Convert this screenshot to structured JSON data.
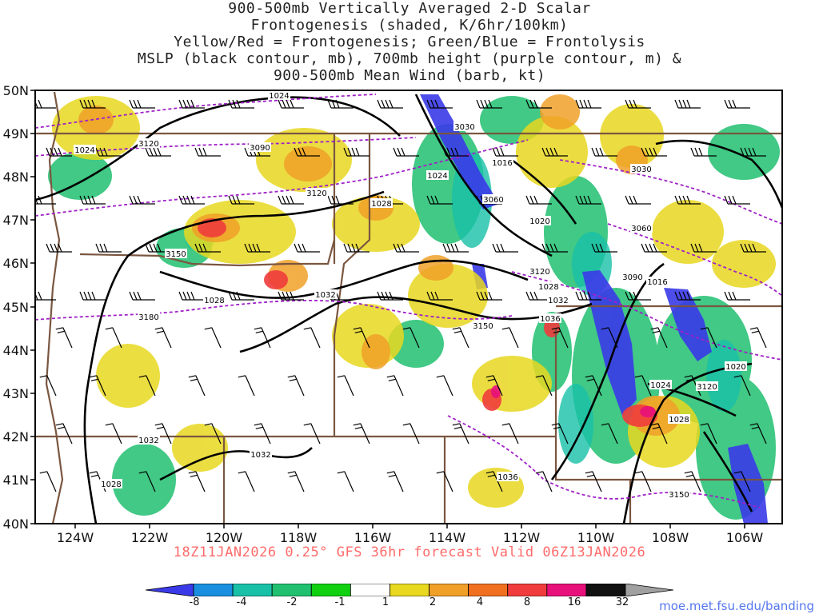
{
  "title": {
    "line1": "900-500mb Vertically Averaged 2-D Scalar",
    "line2": "Frontogenesis (shaded, K/6hr/100km)",
    "line3": "Yellow/Red = Frontogenesis;  Green/Blue = Frontolysis",
    "line4": "MSLP (black contour, mb), 700mb height (purple contour, m) &",
    "line5": "900-500mb Mean Wind (barb, kt)"
  },
  "axes": {
    "lat_labels": [
      "50N",
      "49N",
      "48N",
      "47N",
      "46N",
      "45N",
      "44N",
      "43N",
      "42N",
      "41N",
      "40N"
    ],
    "lon_labels": [
      "124W",
      "122W",
      "120W",
      "118W",
      "116W",
      "114W",
      "112W",
      "110W",
      "108W",
      "106W"
    ]
  },
  "mslp_labels": [
    "1024",
    "1024",
    "1028",
    "1024",
    "1016",
    "1020",
    "1028",
    "1032",
    "1032",
    "1036",
    "1016",
    "1020",
    "1024",
    "1028",
    "1028",
    "1032",
    "1032",
    "1036",
    "1028"
  ],
  "height_labels": [
    "3120",
    "3090",
    "3030",
    "3030",
    "3120",
    "3060",
    "3060",
    "3150",
    "3120",
    "3090",
    "3180",
    "3150",
    "3120",
    "3150"
  ],
  "valid_line": "18Z11JAN2026 0.25° GFS 36hr forecast Valid 06Z13JAN2026",
  "colorbar": {
    "labels": [
      "-8",
      "-4",
      "-2",
      "-1",
      "1",
      "2",
      "4",
      "8",
      "16",
      "32"
    ],
    "colors": [
      "#3a3ae8",
      "#1a8fe0",
      "#18c0a8",
      "#20c070",
      "#10d010",
      "#ffffff",
      "#e8d820",
      "#f0a028",
      "#f07020",
      "#f03c3c",
      "#e8107a",
      "#111111",
      "#a0a0a0"
    ]
  },
  "credit": "moe.met.fsu.edu/banding"
}
